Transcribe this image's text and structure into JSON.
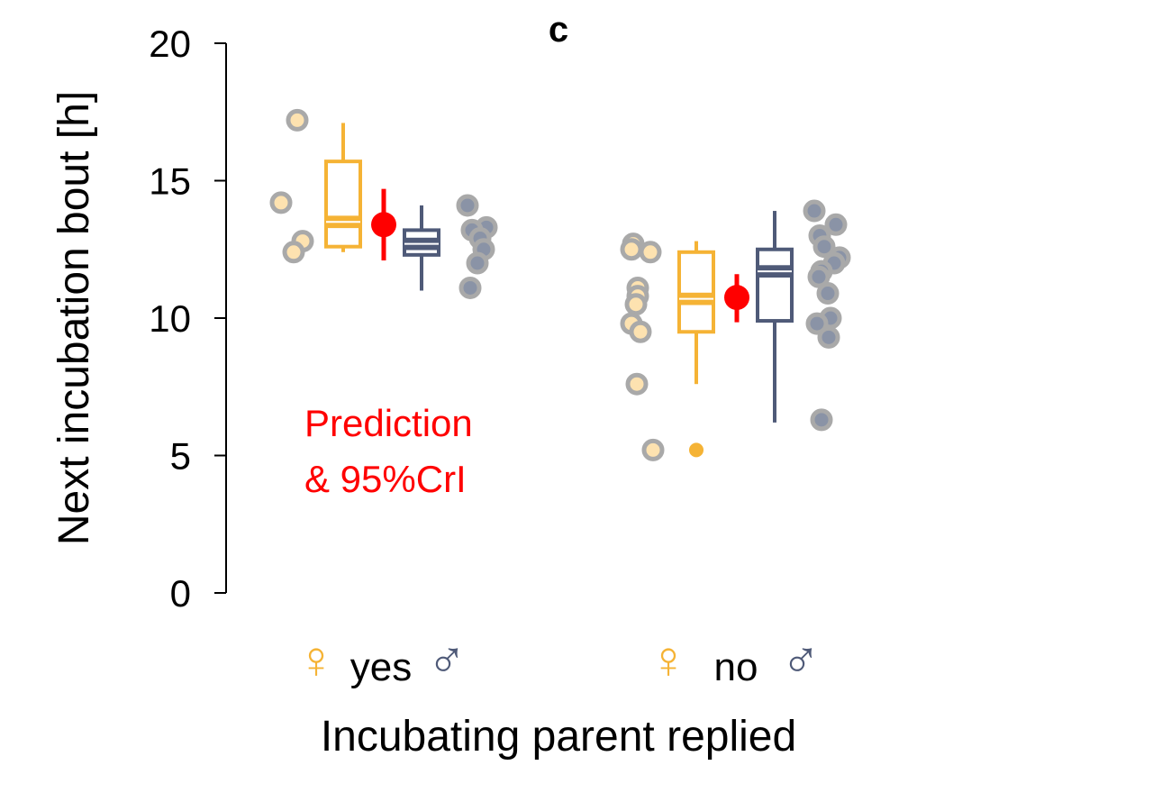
{
  "chart_data": {
    "type": "box",
    "panel_label": "c",
    "ylabel": "Next incubation bout [h]",
    "xlabel": "Incubating parent replied",
    "ylim": [
      0,
      20
    ],
    "yticks": [
      "0",
      "5",
      "10",
      "15",
      "20"
    ],
    "ytick_values": [
      0,
      5,
      10,
      15,
      20
    ],
    "categories": [
      "yes",
      "no"
    ],
    "female_symbol": "♀",
    "male_symbol": "♂",
    "legend_text": [
      "Prediction",
      "& 95%CrI"
    ],
    "colors": {
      "female": "#F5B335",
      "female_points": "#FDE2B0",
      "male": "#4F5A78",
      "male_points": "#8A93A6",
      "point_edge": "#A9A9A9",
      "prediction": "#FF0000"
    },
    "groups": [
      {
        "category": "yes",
        "female": {
          "box": {
            "min": 12.4,
            "q1": 12.6,
            "median": 13.5,
            "q3": 15.7,
            "max": 17.1,
            "mean": 13.5
          },
          "points": [
            17.2,
            14.2,
            12.8,
            12.4
          ]
        },
        "prediction": {
          "estimate": 13.4,
          "lower": 12.1,
          "upper": 14.7
        },
        "male": {
          "box": {
            "min": 11.0,
            "q1": 12.3,
            "median": 12.7,
            "q3": 13.2,
            "max": 14.1,
            "mean": 12.7
          },
          "points": [
            14.1,
            13.3,
            13.2,
            12.9,
            12.5,
            12.0,
            11.1
          ]
        }
      },
      {
        "category": "no",
        "female": {
          "box": {
            "min": 7.6,
            "q1": 9.5,
            "median": 10.7,
            "q3": 12.4,
            "max": 12.8,
            "mean": 10.7,
            "outliers": [
              5.2
            ]
          },
          "points": [
            12.7,
            12.5,
            12.4,
            11.1,
            10.8,
            10.5,
            9.8,
            9.5,
            7.6,
            5.2
          ]
        },
        "prediction": {
          "estimate": 10.75,
          "lower": 9.85,
          "upper": 11.6
        },
        "male": {
          "box": {
            "min": 6.2,
            "q1": 9.9,
            "median": 11.7,
            "q3": 12.5,
            "max": 13.9,
            "mean": 11.7
          },
          "points": [
            13.9,
            13.4,
            13.0,
            12.6,
            12.2,
            12.0,
            11.7,
            11.5,
            10.9,
            10.0,
            9.8,
            9.3,
            6.3
          ]
        }
      }
    ]
  }
}
